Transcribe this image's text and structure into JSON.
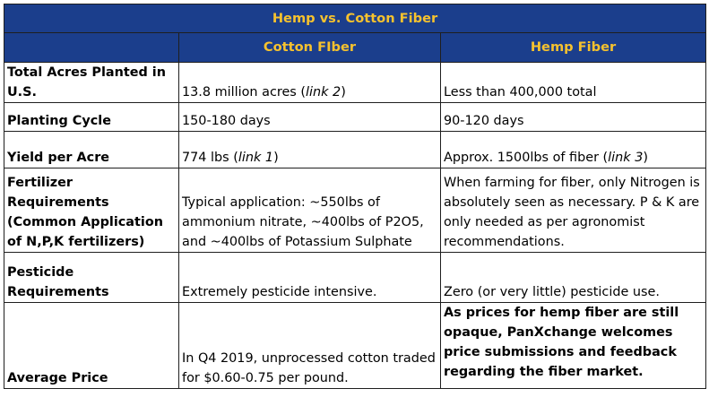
{
  "table": {
    "title": "Hemp vs. Cotton Fiber",
    "columns": [
      "",
      "Cotton FIber",
      "Hemp Fiber"
    ],
    "rows": [
      {
        "label": "Total Acres Planted in U.S.",
        "cotton": "13.8 million acres (",
        "cotton_link": "link 2",
        "cotton_tail": ")",
        "hemp": "Less than 400,000 total"
      },
      {
        "label": "Planting Cycle",
        "cotton": "150-180 days",
        "hemp": "90-120 days"
      },
      {
        "label": "Yield per Acre",
        "cotton": "774 lbs (",
        "cotton_link": "link 1",
        "cotton_tail": ")",
        "hemp": "Approx. 1500lbs of fiber (",
        "hemp_link": "link 3",
        "hemp_tail": ")"
      },
      {
        "label": "Fertilizer Requirements (Common Application of N,P,K fertilizers)",
        "cotton": "Typical application: ~550lbs of ammonium nitrate, ~400lbs of P2O5, and ~400lbs of Potassium Sulphate",
        "hemp": "When farming for fiber, only Nitrogen is absolutely seen as necessary. P & K are only needed as per agronomist recommendations."
      },
      {
        "label": "Pesticide Requirements",
        "cotton": "Extremely pesticide intensive.",
        "hemp": "Zero (or very little) pesticide use."
      },
      {
        "label": "Average Price",
        "cotton": "In Q4 2019, unprocessed cotton traded for $0.60-0.75 per pound.",
        "hemp": "As prices for hemp fiber are still opaque, PanXchange welcomes price submissions and feedback regarding the fiber market."
      }
    ]
  },
  "colors": {
    "header_bg": "#1b3e8c",
    "header_text": "#f6c22e",
    "border": "#1f1f1f"
  }
}
